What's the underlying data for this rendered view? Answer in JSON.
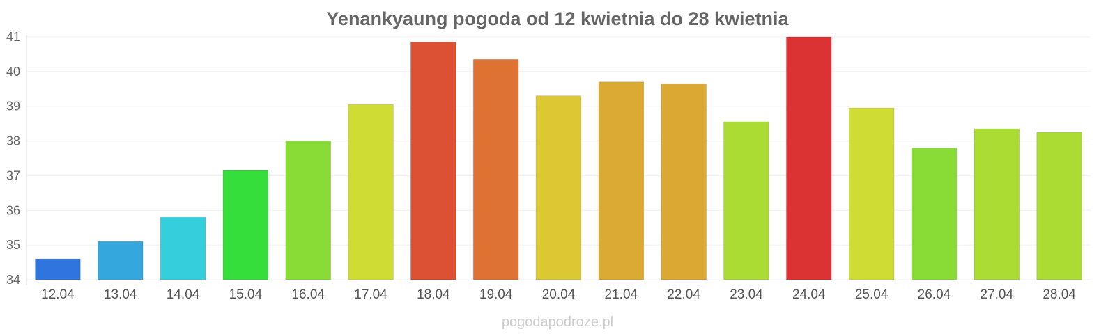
{
  "chart_data": {
    "type": "bar",
    "title": "Yenankyaung pogoda od 12 kwietnia do 28 kwietnia",
    "xlabel": "",
    "ylabel": "",
    "categories": [
      "12.04",
      "13.04",
      "14.04",
      "15.04",
      "16.04",
      "17.04",
      "18.04",
      "19.04",
      "20.04",
      "21.04",
      "22.04",
      "23.04",
      "24.04",
      "25.04",
      "26.04",
      "27.04",
      "28.04"
    ],
    "values": [
      34.6,
      35.1,
      35.8,
      37.15,
      38.0,
      39.05,
      40.85,
      40.35,
      39.3,
      39.7,
      39.65,
      38.55,
      41.0,
      38.95,
      37.8,
      38.35,
      38.25
    ],
    "colors": [
      "#3075df",
      "#34a8dd",
      "#35cedd",
      "#35de3a",
      "#89dc35",
      "#cfdc33",
      "#dc5033",
      "#de7233",
      "#dcc833",
      "#dbaa33",
      "#dba833",
      "#abdc33",
      "#db3333",
      "#cfdc33",
      "#89dc35",
      "#abdc33",
      "#abdc33"
    ],
    "ylim": [
      34,
      41
    ],
    "yticks": [
      34,
      35,
      36,
      37,
      38,
      39,
      40,
      41
    ],
    "grid": true,
    "legend": "none"
  },
  "footer": {
    "source": "pogodapodroze.pl"
  }
}
